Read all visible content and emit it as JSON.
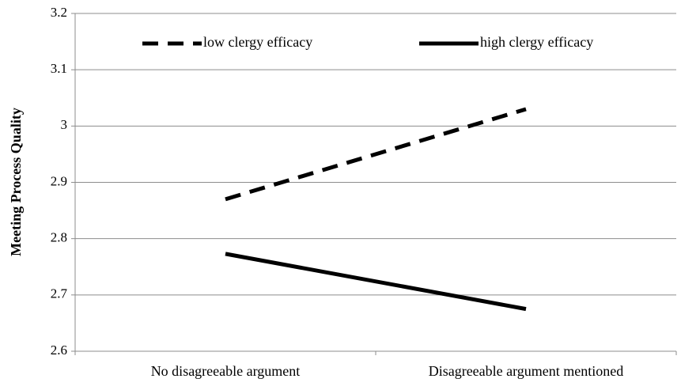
{
  "chart_data": {
    "type": "line",
    "y_label": "Meeting Process Quality",
    "categories": [
      "No disagreeable argument",
      "Disagreeable argument mentioned"
    ],
    "series": [
      {
        "name": "low clergy efficacy",
        "color": "#000000",
        "dash": "dashed",
        "values": [
          2.87,
          3.03
        ]
      },
      {
        "name": "high clergy efficacy",
        "color": "#000000",
        "dash": "solid",
        "values": [
          2.773,
          2.675
        ]
      }
    ],
    "ylim": [
      2.6,
      3.2
    ],
    "yticks": [
      2.6,
      2.7,
      2.8,
      2.9,
      3,
      3.1,
      3.2
    ],
    "grid": true,
    "legend": "top"
  }
}
